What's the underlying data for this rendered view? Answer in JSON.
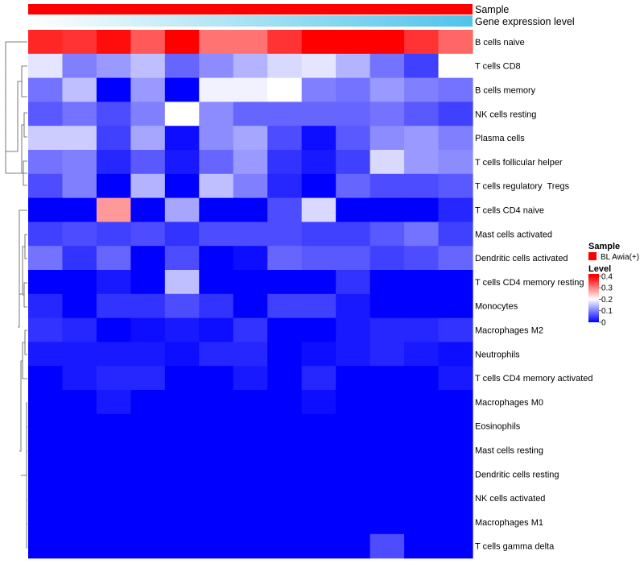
{
  "chart_data": {
    "type": "heatmap",
    "title": "",
    "annotation_tracks": [
      {
        "label": "Sample",
        "color": "#ff0000"
      },
      {
        "label": "Gene expression level",
        "gradient": [
          "#ffffff",
          "#4fc3ea"
        ]
      }
    ],
    "n_columns": 13,
    "rows": [
      "B cells naive",
      "T cells CD8",
      "B cells memory",
      "NK cells resting",
      "Plasma cells",
      "T cells follicular helper",
      "T cells regulatory  Tregs",
      "T cells CD4 naive",
      "Mast cells activated",
      "Dendritic cells activated",
      "T cells CD4 memory resting",
      "Monocytes",
      "Macrophages M2",
      "Neutrophils",
      "T cells CD4 memory activated",
      "Macrophages M0",
      "Eosinophils",
      "Mast cells resting",
      "Dendritic cells resting",
      "NK cells activated",
      "Macrophages M1",
      "T cells gamma delta"
    ],
    "values": [
      [
        0.37,
        0.36,
        0.39,
        0.33,
        0.42,
        0.31,
        0.31,
        0.36,
        0.42,
        0.42,
        0.41,
        0.36,
        0.32
      ],
      [
        0.18,
        0.1,
        0.12,
        0.15,
        0.08,
        0.11,
        0.14,
        0.17,
        0.18,
        0.14,
        0.09,
        0.05,
        0.2
      ],
      [
        0.09,
        0.15,
        0.0,
        0.12,
        0.0,
        0.19,
        0.19,
        0.2,
        0.1,
        0.09,
        0.12,
        0.1,
        0.09
      ],
      [
        0.07,
        0.09,
        0.06,
        0.1,
        0.2,
        0.11,
        0.08,
        0.08,
        0.08,
        0.08,
        0.09,
        0.07,
        0.05
      ],
      [
        0.16,
        0.16,
        0.05,
        0.13,
        0.01,
        0.11,
        0.13,
        0.06,
        0.01,
        0.07,
        0.11,
        0.12,
        0.1
      ],
      [
        0.09,
        0.1,
        0.03,
        0.07,
        0.02,
        0.08,
        0.12,
        0.04,
        0.02,
        0.05,
        0.17,
        0.12,
        0.11
      ],
      [
        0.06,
        0.1,
        0.0,
        0.14,
        0.0,
        0.15,
        0.1,
        0.03,
        0.0,
        0.08,
        0.06,
        0.06,
        0.07
      ],
      [
        0.0,
        0.0,
        0.28,
        0.0,
        0.13,
        0.0,
        0.0,
        0.06,
        0.17,
        0.0,
        0.0,
        0.0,
        0.03
      ],
      [
        0.05,
        0.06,
        0.05,
        0.06,
        0.04,
        0.06,
        0.06,
        0.06,
        0.05,
        0.05,
        0.07,
        0.09,
        0.05
      ],
      [
        0.09,
        0.04,
        0.08,
        0.0,
        0.06,
        0.0,
        0.01,
        0.08,
        0.07,
        0.07,
        0.05,
        0.06,
        0.08
      ],
      [
        0.0,
        0.0,
        0.02,
        0.0,
        0.15,
        0.0,
        0.0,
        0.0,
        0.0,
        0.04,
        0.0,
        0.0,
        0.0
      ],
      [
        0.03,
        0.0,
        0.04,
        0.04,
        0.06,
        0.04,
        0.0,
        0.05,
        0.05,
        0.02,
        0.0,
        0.0,
        0.0
      ],
      [
        0.04,
        0.03,
        0.0,
        0.01,
        0.02,
        0.01,
        0.04,
        0.0,
        0.0,
        0.02,
        0.03,
        0.03,
        0.04
      ],
      [
        0.02,
        0.02,
        0.02,
        0.02,
        0.01,
        0.03,
        0.03,
        0.0,
        0.01,
        0.02,
        0.03,
        0.02,
        0.01
      ],
      [
        0.0,
        0.02,
        0.03,
        0.03,
        0.0,
        0.0,
        0.02,
        0.0,
        0.03,
        0.0,
        0.0,
        0.0,
        0.02
      ],
      [
        0.0,
        0.0,
        0.02,
        0.0,
        0.0,
        0.0,
        0.0,
        0.0,
        0.01,
        0.0,
        0.0,
        0.0,
        0.0
      ],
      [
        0.0,
        0.0,
        0.0,
        0.0,
        0.0,
        0.0,
        0.0,
        0.0,
        0.0,
        0.0,
        0.0,
        0.0,
        0.0
      ],
      [
        0.0,
        0.0,
        0.0,
        0.0,
        0.0,
        0.0,
        0.0,
        0.0,
        0.0,
        0.0,
        0.0,
        0.0,
        0.0
      ],
      [
        0.0,
        0.0,
        0.0,
        0.0,
        0.0,
        0.0,
        0.0,
        0.0,
        0.0,
        0.0,
        0.0,
        0.0,
        0.0
      ],
      [
        0.0,
        0.0,
        0.0,
        0.0,
        0.0,
        0.0,
        0.0,
        0.0,
        0.0,
        0.0,
        0.0,
        0.0,
        0.0
      ],
      [
        0.0,
        0.0,
        0.0,
        0.0,
        0.0,
        0.0,
        0.0,
        0.0,
        0.0,
        0.0,
        0.0,
        0.0,
        0.0
      ],
      [
        0.0,
        0.0,
        0.0,
        0.0,
        0.0,
        0.0,
        0.0,
        0.0,
        0.0,
        0.0,
        0.06,
        0.0,
        0.0
      ]
    ],
    "color_scale": {
      "stops": [
        [
          0,
          "#0000ff"
        ],
        [
          0.2,
          "#ffffff"
        ],
        [
          0.4,
          "#ff0000"
        ]
      ],
      "range": [
        0,
        0.42
      ]
    },
    "legend": {
      "placement": "right",
      "sample_title": "Sample",
      "sample_items": [
        {
          "label": "BL Awia(+)",
          "color": "#ff0000"
        }
      ],
      "level_title": "Level",
      "level_ticks": [
        "0.4",
        "0.3",
        "0.2",
        "0.1",
        "0"
      ],
      "level_tick_values": [
        0.4,
        0.3,
        0.2,
        0.1,
        0
      ]
    },
    "row_dendrogram": true,
    "grid": false
  }
}
